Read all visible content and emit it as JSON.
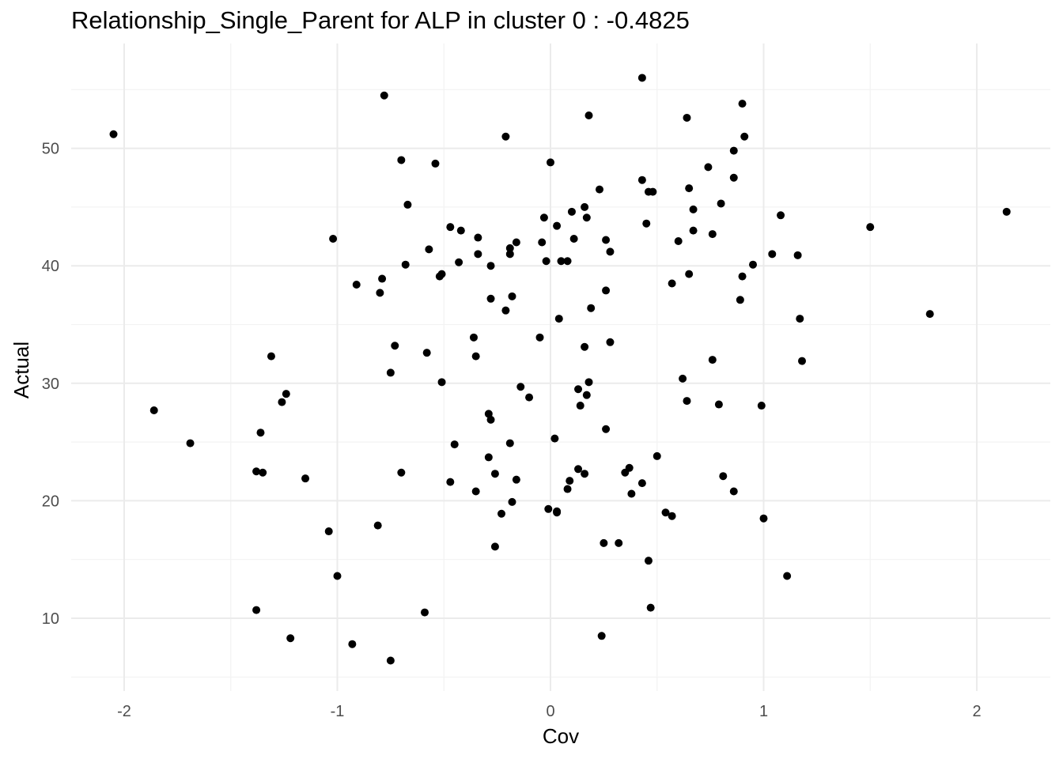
{
  "chart_data": {
    "type": "scatter",
    "title": "Relationship_Single_Parent for ALP in cluster 0 : -0.4825",
    "xlabel": "Cov",
    "ylabel": "Actual",
    "xlim": [
      -2.25,
      2.35
    ],
    "ylim": [
      4.5,
      57.5
    ],
    "x_ticks": [
      -2,
      -1,
      0,
      1,
      2
    ],
    "x_tick_labels": [
      "-2",
      "-1",
      "0",
      "1",
      "2"
    ],
    "y_ticks": [
      10,
      20,
      30,
      40,
      50
    ],
    "y_tick_labels": [
      "10",
      "20",
      "30",
      "40",
      "50"
    ],
    "grid": true,
    "colors": {
      "point": "#000000",
      "grid_major": "#ebebeb",
      "grid_minor": "#f3f3f3"
    },
    "points": [
      {
        "x": -2.05,
        "y": 51.2
      },
      {
        "x": -1.86,
        "y": 27.7
      },
      {
        "x": -1.69,
        "y": 24.9
      },
      {
        "x": -1.38,
        "y": 22.5
      },
      {
        "x": -1.36,
        "y": 25.8
      },
      {
        "x": -1.35,
        "y": 22.4
      },
      {
        "x": -1.38,
        "y": 10.7
      },
      {
        "x": -1.31,
        "y": 32.3
      },
      {
        "x": -1.26,
        "y": 28.4
      },
      {
        "x": -1.24,
        "y": 29.1
      },
      {
        "x": -1.22,
        "y": 8.3
      },
      {
        "x": -1.15,
        "y": 21.9
      },
      {
        "x": -1.04,
        "y": 17.4
      },
      {
        "x": -1.02,
        "y": 42.3
      },
      {
        "x": -1.0,
        "y": 13.6
      },
      {
        "x": -0.93,
        "y": 7.8
      },
      {
        "x": -0.91,
        "y": 38.4
      },
      {
        "x": -0.81,
        "y": 17.9
      },
      {
        "x": -0.8,
        "y": 37.7
      },
      {
        "x": -0.79,
        "y": 38.9
      },
      {
        "x": -0.78,
        "y": 54.5
      },
      {
        "x": -0.75,
        "y": 30.9
      },
      {
        "x": -0.75,
        "y": 6.4
      },
      {
        "x": -0.73,
        "y": 33.2
      },
      {
        "x": -0.7,
        "y": 49.0
      },
      {
        "x": -0.7,
        "y": 22.4
      },
      {
        "x": -0.68,
        "y": 40.1
      },
      {
        "x": -0.67,
        "y": 45.2
      },
      {
        "x": -0.59,
        "y": 10.5
      },
      {
        "x": -0.58,
        "y": 32.6
      },
      {
        "x": -0.57,
        "y": 41.4
      },
      {
        "x": -0.54,
        "y": 48.7
      },
      {
        "x": -0.52,
        "y": 39.1
      },
      {
        "x": -0.51,
        "y": 39.3
      },
      {
        "x": -0.51,
        "y": 30.1
      },
      {
        "x": -0.47,
        "y": 43.3
      },
      {
        "x": -0.47,
        "y": 21.6
      },
      {
        "x": -0.45,
        "y": 24.8
      },
      {
        "x": -0.43,
        "y": 40.3
      },
      {
        "x": -0.42,
        "y": 43.0
      },
      {
        "x": -0.36,
        "y": 33.9
      },
      {
        "x": -0.35,
        "y": 32.3
      },
      {
        "x": -0.35,
        "y": 20.8
      },
      {
        "x": -0.34,
        "y": 42.4
      },
      {
        "x": -0.34,
        "y": 41.0
      },
      {
        "x": -0.29,
        "y": 27.4
      },
      {
        "x": -0.29,
        "y": 23.7
      },
      {
        "x": -0.28,
        "y": 40.0
      },
      {
        "x": -0.28,
        "y": 37.2
      },
      {
        "x": -0.28,
        "y": 26.9
      },
      {
        "x": -0.26,
        "y": 22.3
      },
      {
        "x": -0.26,
        "y": 16.1
      },
      {
        "x": -0.23,
        "y": 18.9
      },
      {
        "x": -0.21,
        "y": 51.0
      },
      {
        "x": -0.21,
        "y": 36.2
      },
      {
        "x": -0.19,
        "y": 41.5
      },
      {
        "x": -0.19,
        "y": 41.0
      },
      {
        "x": -0.19,
        "y": 24.9
      },
      {
        "x": -0.18,
        "y": 37.4
      },
      {
        "x": -0.18,
        "y": 19.9
      },
      {
        "x": -0.16,
        "y": 42.0
      },
      {
        "x": -0.16,
        "y": 21.8
      },
      {
        "x": -0.14,
        "y": 29.7
      },
      {
        "x": -0.1,
        "y": 28.8
      },
      {
        "x": -0.05,
        "y": 33.9
      },
      {
        "x": -0.04,
        "y": 42.0
      },
      {
        "x": -0.03,
        "y": 44.1
      },
      {
        "x": -0.02,
        "y": 40.4
      },
      {
        "x": -0.01,
        "y": 19.3
      },
      {
        "x": 0.0,
        "y": 48.8
      },
      {
        "x": 0.02,
        "y": 25.3
      },
      {
        "x": 0.03,
        "y": 43.4
      },
      {
        "x": 0.04,
        "y": 35.5
      },
      {
        "x": 0.03,
        "y": 19.1
      },
      {
        "x": 0.03,
        "y": 19.0
      },
      {
        "x": 0.05,
        "y": 40.4
      },
      {
        "x": 0.08,
        "y": 40.4
      },
      {
        "x": 0.08,
        "y": 21.0
      },
      {
        "x": 0.09,
        "y": 21.7
      },
      {
        "x": 0.1,
        "y": 44.6
      },
      {
        "x": 0.11,
        "y": 42.3
      },
      {
        "x": 0.13,
        "y": 29.5
      },
      {
        "x": 0.13,
        "y": 22.7
      },
      {
        "x": 0.14,
        "y": 28.1
      },
      {
        "x": 0.16,
        "y": 45.0
      },
      {
        "x": 0.16,
        "y": 33.1
      },
      {
        "x": 0.16,
        "y": 22.3
      },
      {
        "x": 0.17,
        "y": 44.1
      },
      {
        "x": 0.17,
        "y": 29.0
      },
      {
        "x": 0.18,
        "y": 30.1
      },
      {
        "x": 0.18,
        "y": 52.8
      },
      {
        "x": 0.19,
        "y": 36.4
      },
      {
        "x": 0.23,
        "y": 46.5
      },
      {
        "x": 0.24,
        "y": 8.5
      },
      {
        "x": 0.25,
        "y": 16.4
      },
      {
        "x": 0.26,
        "y": 26.1
      },
      {
        "x": 0.26,
        "y": 42.2
      },
      {
        "x": 0.26,
        "y": 37.9
      },
      {
        "x": 0.28,
        "y": 33.5
      },
      {
        "x": 0.28,
        "y": 41.2
      },
      {
        "x": 0.32,
        "y": 16.4
      },
      {
        "x": 0.35,
        "y": 22.4
      },
      {
        "x": 0.37,
        "y": 22.8
      },
      {
        "x": 0.38,
        "y": 20.6
      },
      {
        "x": 0.43,
        "y": 47.3
      },
      {
        "x": 0.43,
        "y": 56.0
      },
      {
        "x": 0.43,
        "y": 21.5
      },
      {
        "x": 0.45,
        "y": 43.6
      },
      {
        "x": 0.46,
        "y": 46.3
      },
      {
        "x": 0.46,
        "y": 14.9
      },
      {
        "x": 0.47,
        "y": 10.9
      },
      {
        "x": 0.48,
        "y": 46.3
      },
      {
        "x": 0.5,
        "y": 23.8
      },
      {
        "x": 0.54,
        "y": 19.0
      },
      {
        "x": 0.57,
        "y": 38.5
      },
      {
        "x": 0.57,
        "y": 18.7
      },
      {
        "x": 0.6,
        "y": 42.1
      },
      {
        "x": 0.62,
        "y": 30.4
      },
      {
        "x": 0.64,
        "y": 52.6
      },
      {
        "x": 0.64,
        "y": 28.5
      },
      {
        "x": 0.65,
        "y": 39.3
      },
      {
        "x": 0.65,
        "y": 46.6
      },
      {
        "x": 0.67,
        "y": 44.8
      },
      {
        "x": 0.67,
        "y": 43.0
      },
      {
        "x": 0.74,
        "y": 48.4
      },
      {
        "x": 0.76,
        "y": 42.7
      },
      {
        "x": 0.76,
        "y": 32.0
      },
      {
        "x": 0.79,
        "y": 28.2
      },
      {
        "x": 0.8,
        "y": 45.3
      },
      {
        "x": 0.81,
        "y": 22.1
      },
      {
        "x": 0.86,
        "y": 49.8
      },
      {
        "x": 0.86,
        "y": 47.5
      },
      {
        "x": 0.86,
        "y": 20.8
      },
      {
        "x": 0.89,
        "y": 37.1
      },
      {
        "x": 0.9,
        "y": 53.8
      },
      {
        "x": 0.9,
        "y": 39.1
      },
      {
        "x": 0.91,
        "y": 51.0
      },
      {
        "x": 0.95,
        "y": 40.1
      },
      {
        "x": 0.99,
        "y": 28.1
      },
      {
        "x": 1.0,
        "y": 18.5
      },
      {
        "x": 1.04,
        "y": 41.0
      },
      {
        "x": 1.08,
        "y": 44.3
      },
      {
        "x": 1.11,
        "y": 13.6
      },
      {
        "x": 1.16,
        "y": 40.9
      },
      {
        "x": 1.17,
        "y": 35.5
      },
      {
        "x": 1.18,
        "y": 31.9
      },
      {
        "x": 1.5,
        "y": 43.3
      },
      {
        "x": 1.78,
        "y": 35.9
      },
      {
        "x": 2.14,
        "y": 44.6
      }
    ]
  }
}
